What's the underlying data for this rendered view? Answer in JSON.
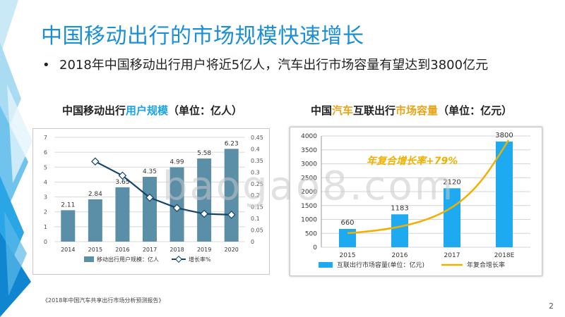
{
  "title": "中国移动出行的市场规模快速增长",
  "bullet": "2018年中国移动出行用户将近5亿人，汽车出行市场容量有望达到3800亿元",
  "left_title": {
    "part1": "中国移动出行",
    "part2": "用户规模",
    "part3": "（单位：亿人）"
  },
  "right_title": {
    "part1": "中国",
    "part2": "汽车",
    "part3": "互联出行",
    "part4": "市场容量",
    "part5": "（单位：亿元）"
  },
  "source": "《2018年中国汽车共享出行市场分析预测报告》",
  "page_number": "2",
  "watermark": "baogao8.com",
  "colors": {
    "title": "#1a8fd6",
    "bar_left": "#5b8fa8",
    "line_left": "#16456b",
    "bar_right": "#1eaaf0",
    "curve_right": "#f0b000"
  },
  "chart_data": [
    {
      "type": "bar",
      "categories": [
        "2014",
        "2015",
        "2016",
        "2017",
        "2018",
        "2019",
        "2020"
      ],
      "series": [
        {
          "name": "移动出行用户规模：亿人",
          "values": [
            2.11,
            2.84,
            3.65,
            4.35,
            4.99,
            5.58,
            6.23
          ],
          "labels": [
            "2.11",
            "2.84",
            "3.65",
            "4.35",
            "4.99",
            "5.58",
            "6.23"
          ]
        },
        {
          "name": "增长率%",
          "type": "line",
          "axis": "right",
          "values": [
            null,
            0.346,
            0.285,
            0.19,
            0.145,
            0.12,
            0.116
          ]
        }
      ],
      "ylim": [
        0,
        7
      ],
      "yticks": [
        "0",
        "1",
        "2",
        "3",
        "4",
        "5",
        "6",
        "7"
      ],
      "y2lim": [
        0,
        0.45
      ],
      "y2ticks": [
        "0",
        "0.05",
        "0.1",
        "0.15",
        "0.2",
        "0.25",
        "0.3",
        "0.35",
        "0.4",
        "0.45"
      ],
      "grid": true,
      "legend": "bottom"
    },
    {
      "type": "bar",
      "categories": [
        "2015",
        "2016",
        "2017",
        "2018E"
      ],
      "series": [
        {
          "name": "互联出行市场容量(单位：亿元)",
          "values": [
            660,
            1183,
            2120,
            3800
          ],
          "labels": [
            "660",
            "1183",
            "2120",
            "3800"
          ]
        },
        {
          "name": "年复合增长率",
          "type": "line"
        }
      ],
      "annotation": "年复合增长率+79%",
      "ylim": [
        0,
        4000
      ],
      "yticks": [
        "0",
        "500",
        "1000",
        "1500",
        "2000",
        "2500",
        "3000",
        "3500",
        "4000"
      ],
      "grid": true,
      "legend": "bottom"
    }
  ]
}
